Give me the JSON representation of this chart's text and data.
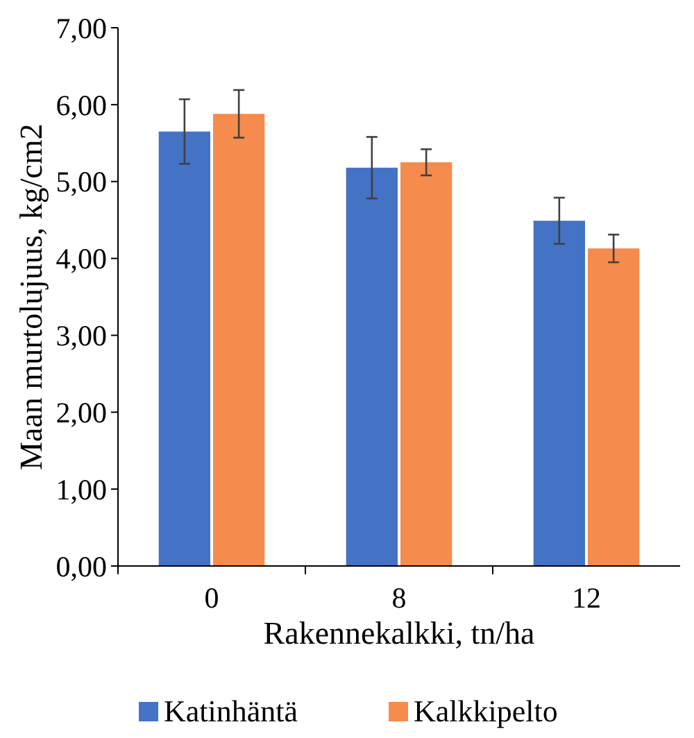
{
  "chart_data": {
    "type": "bar",
    "xlabel": "Rakennekalkki, tn/ha",
    "ylabel": "Maan murtolujuus, kg/cm2",
    "categories": [
      "0",
      "8",
      "12"
    ],
    "series": [
      {
        "name": "Katinhäntä",
        "color": "#4472c4",
        "values": [
          5.65,
          5.18,
          4.49
        ],
        "errors": [
          0.42,
          0.4,
          0.3
        ]
      },
      {
        "name": "Kalkkipelto",
        "color": "#f58b4c",
        "values": [
          5.88,
          5.25,
          4.13
        ],
        "errors": [
          0.31,
          0.17,
          0.18
        ]
      }
    ],
    "ylim": [
      0,
      7
    ],
    "yticks": [
      {
        "value": 0,
        "label": "0,00"
      },
      {
        "value": 1,
        "label": "1,00"
      },
      {
        "value": 2,
        "label": "2,00"
      },
      {
        "value": 3,
        "label": "3,00"
      },
      {
        "value": 4,
        "label": "4,00"
      },
      {
        "value": 5,
        "label": "5,00"
      },
      {
        "value": 6,
        "label": "6,00"
      },
      {
        "value": 7,
        "label": "7,00"
      }
    ],
    "grid": false,
    "legend": "bottom"
  }
}
